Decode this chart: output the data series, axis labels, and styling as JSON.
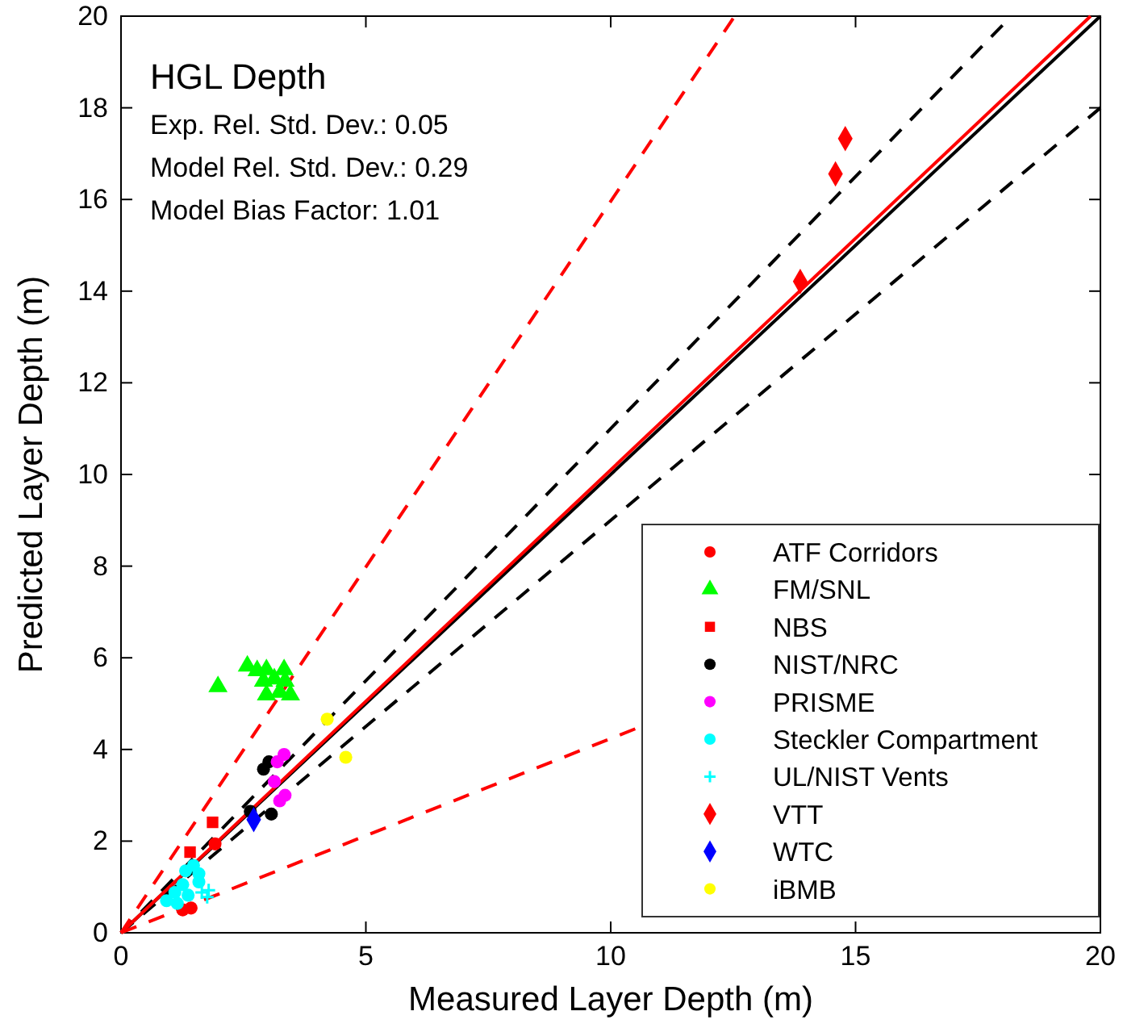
{
  "chart_data": {
    "type": "scatter",
    "title": "HGL Depth",
    "xlabel": "Measured Layer Depth (m)",
    "ylabel": "Predicted Layer Depth (m)",
    "annotations": [
      "Exp. Rel. Std. Dev.: 0.05",
      "Model Rel. Std. Dev.: 0.29",
      "Model Bias Factor: 1.01"
    ],
    "xlim": [
      0,
      20
    ],
    "ylim": [
      0,
      20
    ],
    "xticks": [
      0,
      5,
      10,
      15,
      20
    ],
    "yticks": [
      0,
      2,
      4,
      6,
      8,
      10,
      12,
      14,
      16,
      18,
      20
    ],
    "grid": false,
    "legend": "bottom right",
    "series": [
      {
        "type": "line",
        "color": "#000000",
        "line_style": "solid",
        "x": [
          0,
          20
        ],
        "values": [
          0,
          20
        ]
      },
      {
        "type": "line",
        "color": "#000000",
        "line_style": "dashed",
        "x": [
          0,
          18
        ],
        "values": [
          0,
          19.8
        ]
      },
      {
        "type": "line",
        "color": "#000000",
        "line_style": "dashed",
        "x": [
          0,
          20
        ],
        "values": [
          0,
          18
        ]
      },
      {
        "type": "line",
        "color": "#ff0000",
        "line_style": "solid",
        "x": [
          0,
          19.8
        ],
        "values": [
          0,
          20
        ]
      },
      {
        "type": "line",
        "color": "#ff0000",
        "line_style": "dashed",
        "x": [
          0,
          12.5
        ],
        "values": [
          0,
          19.95
        ]
      },
      {
        "type": "line",
        "color": "#ff0000",
        "line_style": "dashed",
        "x": [
          0,
          10.5
        ],
        "values": [
          0,
          4.45
        ]
      },
      {
        "name": "ATF Corridors",
        "color": "#ff0000",
        "marker": "circle",
        "x": [
          1.92,
          1.26,
          1.43
        ],
        "values": [
          1.94,
          0.5,
          0.54
        ]
      },
      {
        "name": "FM/SNL",
        "color": "#00ff00",
        "marker": "triangle",
        "x": [
          1.98,
          2.58,
          2.78,
          2.97,
          3.33,
          2.91,
          3.13,
          3.35,
          2.97,
          3.24,
          3.46
        ],
        "values": [
          5.37,
          5.82,
          5.72,
          5.74,
          5.74,
          5.49,
          5.54,
          5.49,
          5.19,
          5.25,
          5.19
        ]
      },
      {
        "name": "NBS",
        "color": "#ff0000",
        "marker": "square",
        "x": [
          1.87,
          1.41
        ],
        "values": [
          2.41,
          1.76
        ]
      },
      {
        "name": "NIST/NRC",
        "color": "#000000",
        "marker": "circle",
        "x": [
          2.91,
          3.02,
          3.07,
          2.64
        ],
        "values": [
          3.57,
          3.73,
          2.59,
          2.65
        ]
      },
      {
        "name": "PRISME",
        "color": "#ff00ff",
        "marker": "circle",
        "x": [
          3.33,
          3.19,
          3.13,
          3.35,
          3.24
        ],
        "values": [
          3.89,
          3.73,
          3.3,
          3.0,
          2.88
        ]
      },
      {
        "name": "Steckler Compartment",
        "color": "#00ffff",
        "marker": "circle",
        "x": [
          1.48,
          1.59,
          1.26,
          1.1,
          1.37,
          0.93,
          1.15,
          1.59,
          1.32
        ],
        "values": [
          1.47,
          1.29,
          1.05,
          0.88,
          0.82,
          0.7,
          0.64,
          1.11,
          1.35
        ]
      },
      {
        "name": "UL/NIST Vents",
        "color": "#00ffff",
        "marker": "cross",
        "x": [
          1.79,
          1.76,
          1.65
        ],
        "values": [
          0.93,
          0.78,
          0.88
        ]
      },
      {
        "name": "VTT",
        "color": "#ff0000",
        "marker": "diamond",
        "x": [
          14.79,
          14.59,
          13.87
        ],
        "values": [
          17.33,
          16.56,
          14.21
        ]
      },
      {
        "name": "WTC",
        "color": "#0000ff",
        "marker": "diamond",
        "x": [
          2.71
        ],
        "values": [
          2.47
        ]
      },
      {
        "name": "iBMB",
        "color": "#ffff00",
        "marker": "circle",
        "x": [
          4.21,
          4.59
        ],
        "values": [
          4.66,
          3.83
        ]
      }
    ]
  }
}
